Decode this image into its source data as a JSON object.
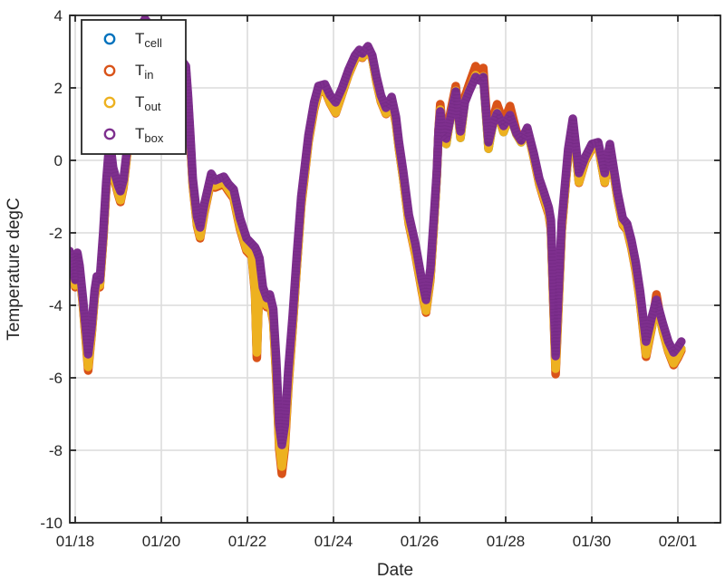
{
  "figure": {
    "xlabel": "Date",
    "ylabel": "Temperature degC",
    "background": "#ffffff",
    "axis_color": "#262626",
    "grid_color": "#dcdcdc"
  },
  "legend": {
    "position": "top-left",
    "entries": [
      {
        "label": "T",
        "subscript": "cell",
        "color": "#0072BD",
        "marker": "open-circle"
      },
      {
        "label": "T",
        "subscript": "in",
        "color": "#D95319",
        "marker": "open-circle"
      },
      {
        "label": "T",
        "subscript": "out",
        "color": "#EDB120",
        "marker": "open-circle"
      },
      {
        "label": "T",
        "subscript": "box",
        "color": "#7E2F8E",
        "marker": "open-circle"
      }
    ]
  },
  "chart_data": {
    "type": "scatter",
    "marker": "open-circle-dense",
    "title": "",
    "xlabel": "Date",
    "ylabel": "Temperature degC",
    "grid": true,
    "ylim": [
      -10,
      4
    ],
    "y_ticks": [
      4,
      2,
      0,
      -2,
      -4,
      -6,
      -8,
      -10
    ],
    "x_tick_labels": [
      "01/18",
      "01/20",
      "01/22",
      "01/24",
      "01/26",
      "01/28",
      "01/30",
      "02/01"
    ],
    "x_tick_days": [
      0,
      2,
      4,
      6,
      8,
      10,
      12,
      14
    ],
    "xlim_days": [
      -0.13,
      15.0
    ],
    "x_unit": "days since 01/18",
    "note": "T_cell coincides with T_out/T_in and is hidden beneath them",
    "x": [
      -0.13,
      0,
      0.05,
      0.1,
      0.18,
      0.3,
      0.38,
      0.45,
      0.5,
      0.57,
      0.65,
      0.72,
      0.8,
      0.88,
      1,
      1.05,
      1.12,
      1.25,
      1.4,
      1.55,
      1.62,
      1.72,
      1.9,
      2.2,
      2.45,
      2.57,
      2.62,
      2.67,
      2.73,
      2.83,
      2.9,
      3,
      3.16,
      3.25,
      3.45,
      3.56,
      3.68,
      3.83,
      3.98,
      4.1,
      4.18,
      4.22,
      4.28,
      4.36,
      4.45,
      4.52,
      4.6,
      4.67,
      4.74,
      4.8,
      4.87,
      4.95,
      5.05,
      5.15,
      5.25,
      5.32,
      5.42,
      5.55,
      5.65,
      5.8,
      5.92,
      6.05,
      6.2,
      6.35,
      6.5,
      6.6,
      6.67,
      6.8,
      6.9,
      7,
      7.1,
      7.22,
      7.35,
      7.45,
      7.52,
      7.62,
      7.75,
      7.9,
      8.05,
      8.15,
      8.25,
      8.33,
      8.4,
      8.44,
      8.48,
      8.55,
      8.62,
      8.72,
      8.84,
      8.95,
      9.05,
      9.15,
      9.3,
      9.4,
      9.48,
      9.6,
      9.7,
      9.8,
      9.95,
      10.1,
      10.25,
      10.36,
      10.5,
      10.65,
      10.78,
      10.88,
      11,
      11.05,
      11.16,
      11.3,
      11.45,
      11.56,
      11.7,
      11.85,
      12,
      12.15,
      12.3,
      12.42,
      12.6,
      12.72,
      12.82,
      12.92,
      13.02,
      13.12,
      13.26,
      13.4,
      13.5,
      13.65,
      13.78,
      13.9,
      14,
      14.08
    ],
    "series": [
      {
        "name": "T_cell",
        "color": "#0072BD",
        "values": [
          -2.6,
          -3.45,
          -2.65,
          -3,
          -3.95,
          -5.7,
          -4.8,
          -3.75,
          -3.35,
          -3.45,
          -2.15,
          -0.75,
          0.48,
          -0.35,
          -0.9,
          -1.1,
          -0.7,
          0.68,
          2.4,
          3.65,
          3.8,
          3.65,
          3.35,
          3,
          2.7,
          2.5,
          1.7,
          0.68,
          -0.65,
          -1.75,
          -2.1,
          -1.4,
          -0.5,
          -0.7,
          -0.6,
          -0.8,
          -1,
          -1.85,
          -2.45,
          -2.6,
          -3.6,
          -5.3,
          -3.1,
          -3.75,
          -4,
          -3.9,
          -4.4,
          -5.9,
          -7.8,
          -8.45,
          -7.8,
          -6.2,
          -4.6,
          -2.85,
          -1.2,
          -0.5,
          0.55,
          1.45,
          1.9,
          1.95,
          1.6,
          1.32,
          1.85,
          2.38,
          2.8,
          2.95,
          2.85,
          3.05,
          2.8,
          2.18,
          1.65,
          1.3,
          1.62,
          1.05,
          0.35,
          -0.48,
          -1.7,
          -2.55,
          -3.55,
          -4.15,
          -3.25,
          -1.8,
          -0.4,
          0.78,
          1.4,
          0.55,
          0.45,
          1.22,
          1.92,
          0.62,
          1.62,
          1.92,
          2.35,
          2.22,
          2.32,
          0.32,
          1,
          1.32,
          0.78,
          1.25,
          0.72,
          0.5,
          0.85,
          0.1,
          -0.62,
          -1,
          -1.45,
          -1.85,
          -5.75,
          -1.9,
          0.15,
          1.05,
          -0.6,
          0,
          0.35,
          0.4,
          -0.6,
          0.35,
          -1.05,
          -1.75,
          -1.9,
          -2.38,
          -3,
          -3.85,
          -5.35,
          -4.55,
          -3.95,
          -4.7,
          -5.25,
          -5.6,
          -5.4,
          -5.2
        ]
      },
      {
        "name": "T_in",
        "color": "#D95319",
        "values": [
          -2.65,
          -3.5,
          -2.7,
          -3.05,
          -4,
          -5.8,
          -4.85,
          -3.8,
          -3.4,
          -3.5,
          -2.2,
          -0.8,
          0.45,
          -0.4,
          -0.95,
          -1.15,
          -0.75,
          0.65,
          2.38,
          3.63,
          3.78,
          3.63,
          3.33,
          2.98,
          2.68,
          2.48,
          1.65,
          0.65,
          -0.7,
          -1.8,
          -2.15,
          -1.45,
          -0.55,
          -0.75,
          -0.65,
          -0.85,
          -1.05,
          -1.9,
          -2.5,
          -2.65,
          -3.7,
          -5.45,
          -3.15,
          -3.8,
          -4.05,
          -3.95,
          -4.45,
          -6,
          -7.95,
          -8.65,
          -7.95,
          -6.3,
          -4.65,
          -2.9,
          -1.25,
          -0.55,
          0.5,
          1.4,
          1.88,
          1.93,
          1.58,
          1.3,
          1.83,
          2.36,
          2.78,
          2.93,
          2.83,
          3.05,
          2.8,
          2.15,
          1.62,
          1.28,
          1.6,
          1.02,
          0.32,
          -0.5,
          -1.75,
          -2.6,
          -3.6,
          -4.2,
          -3.3,
          -1.82,
          -0.4,
          0.82,
          1.55,
          0.72,
          0.62,
          1.35,
          2.05,
          0.85,
          1.75,
          2.1,
          2.6,
          2.45,
          2.55,
          0.55,
          1.15,
          1.55,
          1.05,
          1.5,
          0.8,
          0.55,
          0.88,
          0.08,
          -0.65,
          -1.05,
          -1.5,
          -1.9,
          -5.9,
          -1.95,
          0.12,
          1.02,
          -0.62,
          -0.02,
          0.32,
          0.38,
          -0.62,
          0.32,
          -1.08,
          -1.78,
          -1.93,
          -2.42,
          -3.05,
          -3.9,
          -5.42,
          -4.58,
          -3.7,
          -4.72,
          -5.28,
          -5.65,
          -5.45,
          -5.25
        ]
      },
      {
        "name": "T_out",
        "color": "#EDB120",
        "values": [
          -2.6,
          -3.45,
          -2.65,
          -3,
          -3.95,
          -5.7,
          -4.8,
          -3.75,
          -3.35,
          -3.45,
          -2.15,
          -0.75,
          0.48,
          -0.35,
          -0.9,
          -1.1,
          -0.7,
          0.68,
          2.4,
          3.65,
          3.8,
          3.65,
          3.35,
          3,
          2.7,
          2.5,
          1.7,
          0.68,
          -0.65,
          -1.75,
          -2.1,
          -1.4,
          -0.5,
          -0.7,
          -0.6,
          -0.8,
          -1,
          -1.85,
          -2.45,
          -2.6,
          -3.6,
          -5.3,
          -3.1,
          -3.75,
          -4,
          -3.9,
          -4.4,
          -5.9,
          -7.8,
          -8.45,
          -7.8,
          -6.2,
          -4.6,
          -2.85,
          -1.2,
          -0.5,
          0.55,
          1.45,
          1.9,
          1.95,
          1.6,
          1.32,
          1.85,
          2.38,
          2.8,
          2.95,
          2.85,
          3.05,
          2.8,
          2.18,
          1.65,
          1.3,
          1.62,
          1.05,
          0.35,
          -0.48,
          -1.7,
          -2.55,
          -3.55,
          -4.15,
          -3.25,
          -1.8,
          -0.4,
          0.78,
          1.4,
          0.55,
          0.45,
          1.22,
          1.92,
          0.62,
          1.62,
          1.92,
          2.35,
          2.22,
          2.32,
          0.32,
          1,
          1.32,
          0.78,
          1.25,
          0.72,
          0.5,
          0.85,
          0.1,
          -0.62,
          -1,
          -1.45,
          -1.85,
          -5.75,
          -1.9,
          0.15,
          1.05,
          -0.6,
          0,
          0.35,
          0.4,
          -0.6,
          0.35,
          -1.05,
          -1.75,
          -1.9,
          -2.38,
          -3,
          -3.85,
          -5.35,
          -4.55,
          -3.95,
          -4.7,
          -5.25,
          -5.6,
          -5.4,
          -5.2
        ]
      },
      {
        "name": "T_box",
        "color": "#7E2F8E",
        "values": [
          -2.5,
          -3.3,
          -2.55,
          -2.9,
          -3.8,
          -5.35,
          -4.6,
          -3.6,
          -3.2,
          -3.3,
          -2,
          -0.6,
          0.6,
          -0.2,
          -0.7,
          -0.85,
          -0.55,
          0.8,
          2.5,
          3.75,
          3.9,
          3.75,
          3.45,
          3.1,
          2.8,
          2.6,
          1.8,
          0.8,
          -0.5,
          -1.55,
          -1.85,
          -1.2,
          -0.37,
          -0.55,
          -0.45,
          -0.65,
          -0.8,
          -1.6,
          -2.15,
          -2.3,
          -2.4,
          -2.5,
          -2.7,
          -3.5,
          -3.8,
          -3.7,
          -4.1,
          -5.5,
          -7.3,
          -7.85,
          -7.3,
          -5.8,
          -4.3,
          -2.6,
          -1,
          -0.3,
          0.7,
          1.6,
          2.05,
          2.1,
          1.8,
          1.6,
          2,
          2.5,
          2.9,
          3.05,
          2.95,
          3.15,
          2.9,
          2.3,
          1.8,
          1.45,
          1.75,
          1.2,
          0.5,
          -0.3,
          -1.5,
          -2.3,
          -3.3,
          -3.85,
          -3,
          -1.6,
          -0.3,
          0.8,
          1.35,
          0.7,
          0.6,
          1.2,
          1.9,
          0.8,
          1.6,
          1.9,
          2.3,
          2.2,
          2.3,
          0.5,
          1,
          1.3,
          0.95,
          1.25,
          0.75,
          0.55,
          0.9,
          0.2,
          -0.5,
          -0.85,
          -1.3,
          -1.65,
          -5.4,
          -1.7,
          0.3,
          1.15,
          -0.35,
          0.1,
          0.45,
          0.5,
          -0.35,
          0.45,
          -0.9,
          -1.6,
          -1.75,
          -2.2,
          -2.8,
          -3.6,
          -5,
          -4.3,
          -3.85,
          -4.5,
          -5,
          -5.3,
          -5.15,
          -5
        ]
      }
    ]
  }
}
